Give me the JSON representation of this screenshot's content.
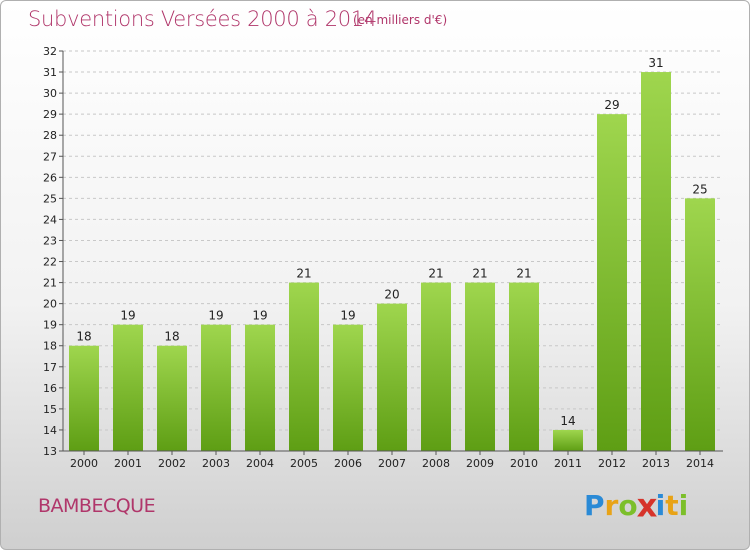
{
  "header": {
    "title": "Subventions Versées 2000 à 2014",
    "subtitle": "(en milliers d'€)"
  },
  "footer": {
    "place": "BAMBECQUE",
    "logo_letters": [
      "P",
      "r",
      "o",
      "x",
      "i",
      "t",
      "i"
    ],
    "logo_colors": [
      "#2a8ad6",
      "#e8a317",
      "#7cbf2a",
      "#d6332a",
      "#2a8ad6",
      "#e8a317",
      "#7cbf2a"
    ]
  },
  "colors": {
    "bar_top": "#9fd64e",
    "bar_bottom": "#5e9e14",
    "text": "#222222",
    "grid": "#c8c8c8"
  },
  "chart_data": {
    "type": "bar",
    "categories": [
      "2000",
      "2001",
      "2002",
      "2003",
      "2004",
      "2005",
      "2006",
      "2007",
      "2008",
      "2009",
      "2010",
      "2011",
      "2012",
      "2013",
      "2014"
    ],
    "values": [
      18,
      19,
      18,
      19,
      19,
      21,
      19,
      20,
      21,
      21,
      21,
      14,
      29,
      31,
      25
    ],
    "ylim": [
      13,
      32
    ],
    "yticks": [
      13,
      14,
      15,
      16,
      17,
      18,
      19,
      20,
      21,
      22,
      23,
      24,
      25,
      26,
      27,
      28,
      29,
      30,
      31,
      32
    ],
    "grid": true
  }
}
